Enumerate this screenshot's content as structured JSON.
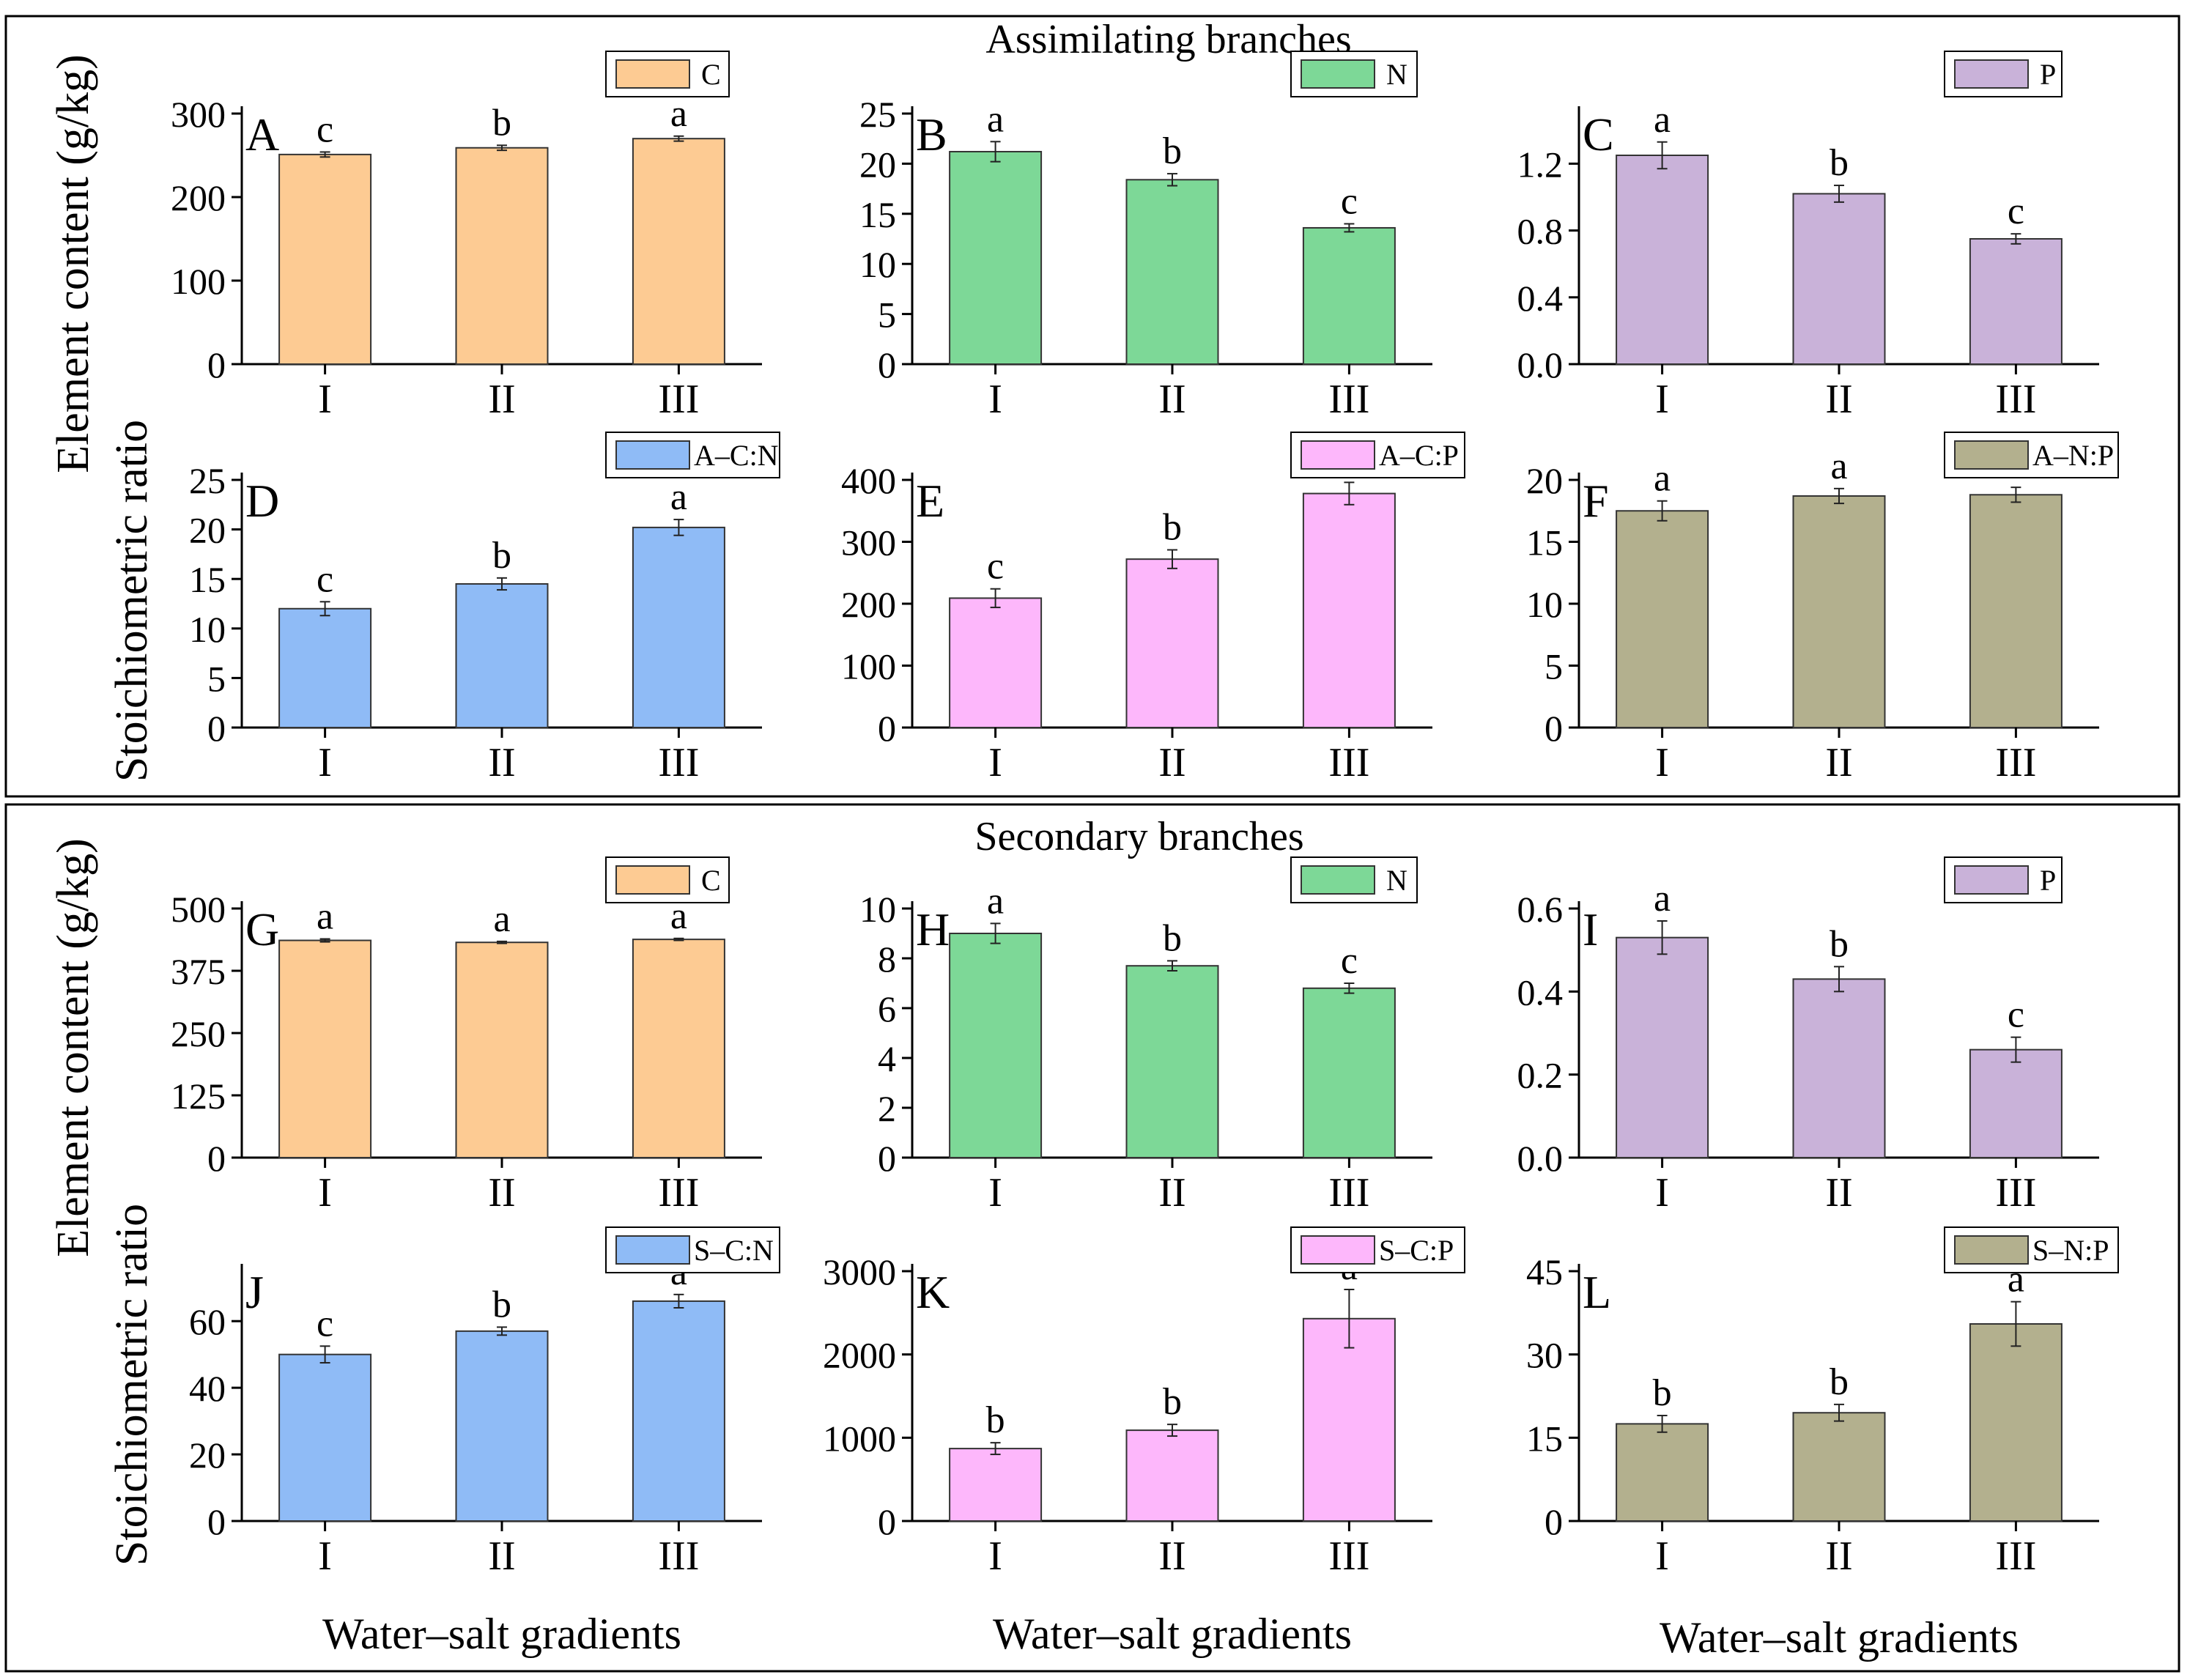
{
  "sections": {
    "top_title": "Assimilating branches",
    "bottom_title": "Secondary branches"
  },
  "axes_labels": {
    "element_content": "Element content (g/kg)",
    "stoichiometric_ratio": "Stoichiometric ratio",
    "water_salt": "Water–salt gradients"
  },
  "colors": {
    "C": "#FDCB93",
    "N": "#7DD897",
    "P": "#C9B2D9",
    "CN": "#8FBBF6",
    "CP": "#FDB7FB",
    "NP": "#B3B08E"
  },
  "chart_data": [
    {
      "panel": "A",
      "type": "bar",
      "title": "",
      "legend": "C",
      "color": "#FDCB93",
      "categories": [
        "I",
        "II",
        "III"
      ],
      "values": [
        251,
        259,
        270
      ],
      "errors": [
        3,
        3,
        3
      ],
      "letters": [
        "c",
        "b",
        "a"
      ],
      "ylim": [
        0,
        300
      ],
      "yticks": [
        "0",
        "100",
        "200",
        "300"
      ]
    },
    {
      "panel": "B",
      "type": "bar",
      "title": "",
      "legend": "N",
      "color": "#7DD897",
      "categories": [
        "I",
        "II",
        "III"
      ],
      "values": [
        21.2,
        18.4,
        13.6
      ],
      "errors": [
        1.0,
        0.6,
        0.4
      ],
      "letters": [
        "a",
        "b",
        "c"
      ],
      "ylim": [
        0,
        25
      ],
      "yticks": [
        "0",
        "5",
        "10",
        "15",
        "20",
        "25"
      ]
    },
    {
      "panel": "C",
      "type": "bar",
      "title": "",
      "legend": "P",
      "color": "#C9B2D9",
      "categories": [
        "I",
        "II",
        "III"
      ],
      "values": [
        1.25,
        1.02,
        0.75
      ],
      "errors": [
        0.08,
        0.05,
        0.03
      ],
      "letters": [
        "a",
        "b",
        "c"
      ],
      "ylim": [
        0,
        1.5
      ],
      "yticks": [
        "0.0",
        "0.4",
        "0.8",
        "1.2"
      ]
    },
    {
      "panel": "D",
      "type": "bar",
      "title": "",
      "legend": "A–C:N",
      "color": "#8FBBF6",
      "categories": [
        "I",
        "II",
        "III"
      ],
      "values": [
        12.0,
        14.5,
        20.2
      ],
      "errors": [
        0.7,
        0.6,
        0.8
      ],
      "letters": [
        "c",
        "b",
        "a"
      ],
      "ylim": [
        0,
        25
      ],
      "yticks": [
        "0",
        "5",
        "10",
        "15",
        "20",
        "25"
      ]
    },
    {
      "panel": "E",
      "type": "bar",
      "title": "",
      "legend": "A–C:P",
      "color": "#FDB7FB",
      "categories": [
        "I",
        "II",
        "III"
      ],
      "values": [
        209,
        272,
        378
      ],
      "errors": [
        15,
        15,
        18
      ],
      "letters": [
        "c",
        "b",
        "a"
      ],
      "ylim": [
        0,
        400
      ],
      "yticks": [
        "0",
        "100",
        "200",
        "300",
        "400"
      ]
    },
    {
      "panel": "F",
      "type": "bar",
      "title": "",
      "legend": "A–N:P",
      "color": "#B3B08E",
      "categories": [
        "I",
        "II",
        "III"
      ],
      "values": [
        17.5,
        18.7,
        18.8
      ],
      "errors": [
        0.8,
        0.6,
        0.6
      ],
      "letters": [
        "a",
        "a",
        "a"
      ],
      "ylim": [
        0,
        20
      ],
      "yticks": [
        "0",
        "5",
        "10",
        "15",
        "20"
      ]
    },
    {
      "panel": "G",
      "type": "bar",
      "title": "",
      "legend": "C",
      "color": "#FDCB93",
      "categories": [
        "I",
        "II",
        "III"
      ],
      "values": [
        436,
        432,
        438
      ],
      "errors": [
        3,
        2,
        2
      ],
      "letters": [
        "a",
        "a",
        "a"
      ],
      "ylim": [
        0,
        500
      ],
      "yticks": [
        "0",
        "125",
        "250",
        "375",
        "500"
      ]
    },
    {
      "panel": "H",
      "type": "bar",
      "title": "",
      "legend": "N",
      "color": "#7DD897",
      "categories": [
        "I",
        "II",
        "III"
      ],
      "values": [
        9.0,
        7.7,
        6.8
      ],
      "errors": [
        0.4,
        0.2,
        0.2
      ],
      "letters": [
        "a",
        "b",
        "c"
      ],
      "ylim": [
        0,
        10
      ],
      "yticks": [
        "0",
        "2",
        "4",
        "6",
        "8",
        "10"
      ]
    },
    {
      "panel": "I",
      "type": "bar",
      "title": "",
      "legend": "P",
      "color": "#C9B2D9",
      "categories": [
        "I",
        "II",
        "III"
      ],
      "values": [
        0.53,
        0.43,
        0.26
      ],
      "errors": [
        0.04,
        0.03,
        0.03
      ],
      "letters": [
        "a",
        "b",
        "c"
      ],
      "ylim": [
        0,
        0.6
      ],
      "yticks": [
        "0.0",
        "0.2",
        "0.4",
        "0.6"
      ]
    },
    {
      "panel": "J",
      "type": "bar",
      "title": "",
      "legend": "S–C:N",
      "color": "#8FBBF6",
      "categories": [
        "I",
        "II",
        "III"
      ],
      "values": [
        50,
        57,
        66
      ],
      "errors": [
        2.5,
        1.2,
        2.0
      ],
      "letters": [
        "c",
        "b",
        "a"
      ],
      "ylim": [
        0,
        75
      ],
      "yticks": [
        "0",
        "20",
        "40",
        "60"
      ]
    },
    {
      "panel": "K",
      "type": "bar",
      "title": "",
      "legend": "S–C:P",
      "color": "#FDB7FB",
      "categories": [
        "I",
        "II",
        "III"
      ],
      "values": [
        870,
        1090,
        2430
      ],
      "errors": [
        70,
        70,
        350
      ],
      "letters": [
        "b",
        "b",
        "a"
      ],
      "ylim": [
        0,
        3000
      ],
      "yticks": [
        "0",
        "1000",
        "2000",
        "3000"
      ]
    },
    {
      "panel": "L",
      "type": "bar",
      "title": "",
      "legend": "S–N:P",
      "color": "#B3B08E",
      "categories": [
        "I",
        "II",
        "III"
      ],
      "values": [
        17.5,
        19.5,
        35.5
      ],
      "errors": [
        1.5,
        1.5,
        4.0
      ],
      "letters": [
        "b",
        "b",
        "a"
      ],
      "ylim": [
        0,
        45
      ],
      "yticks": [
        "0",
        "15",
        "30",
        "45"
      ]
    }
  ]
}
